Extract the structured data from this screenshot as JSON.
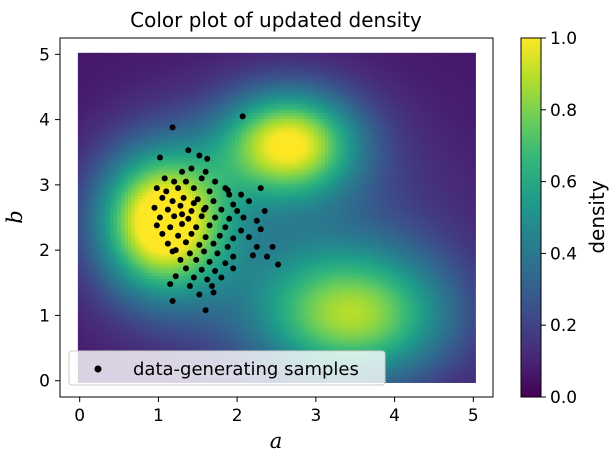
{
  "chart_data": {
    "type": "scatter",
    "title": "Color plot of updated density",
    "xlabel": "a",
    "ylabel": "b",
    "xlim": [
      -0.25,
      5.25
    ],
    "ylim": [
      -0.25,
      5.25
    ],
    "xticks": [
      0,
      1,
      2,
      3,
      4,
      5
    ],
    "yticks": [
      0,
      1,
      2,
      3,
      4,
      5
    ],
    "colorbar": {
      "label": "density",
      "range": [
        0.0,
        1.0
      ],
      "ticks": [
        "0.0",
        "0.2",
        "0.4",
        "0.6",
        "0.8",
        "1.0"
      ],
      "colormap": [
        "#440154",
        "#482878",
        "#3e4989",
        "#31688e",
        "#26828e",
        "#1f9e89",
        "#35b779",
        "#6ece58",
        "#b5de2b",
        "#fde725"
      ]
    },
    "density_peaks": [
      {
        "a": 1.05,
        "b": 2.45,
        "value": 1.0
      },
      {
        "a": 2.65,
        "b": 3.65,
        "value": 0.85
      },
      {
        "a": 3.5,
        "b": 1.0,
        "value": 0.7
      }
    ],
    "density_domain": {
      "a": [
        0,
        5
      ],
      "b": [
        0,
        5
      ]
    },
    "series": [
      {
        "name": "data-generating samples",
        "color": "#000000",
        "points": [
          [
            1.18,
            3.88
          ],
          [
            2.07,
            4.05
          ],
          [
            1.02,
            3.42
          ],
          [
            1.52,
            3.45
          ],
          [
            1.62,
            3.4
          ],
          [
            1.38,
            3.53
          ],
          [
            1.42,
            3.25
          ],
          [
            1.6,
            3.2
          ],
          [
            1.3,
            3.2
          ],
          [
            1.08,
            3.1
          ],
          [
            1.2,
            3.05
          ],
          [
            1.35,
            3.05
          ],
          [
            1.55,
            3.1
          ],
          [
            1.72,
            3.05
          ],
          [
            1.85,
            2.95
          ],
          [
            0.98,
            2.95
          ],
          [
            1.1,
            2.9
          ],
          [
            1.25,
            2.95
          ],
          [
            1.45,
            2.95
          ],
          [
            1.65,
            2.9
          ],
          [
            1.9,
            2.85
          ],
          [
            2.05,
            2.85
          ],
          [
            2.3,
            2.95
          ],
          [
            1.05,
            2.8
          ],
          [
            1.18,
            2.75
          ],
          [
            1.32,
            2.8
          ],
          [
            1.5,
            2.78
          ],
          [
            1.7,
            2.75
          ],
          [
            1.95,
            2.7
          ],
          [
            2.15,
            2.75
          ],
          [
            0.95,
            2.65
          ],
          [
            1.12,
            2.62
          ],
          [
            1.28,
            2.68
          ],
          [
            1.42,
            2.6
          ],
          [
            1.6,
            2.65
          ],
          [
            1.8,
            2.62
          ],
          [
            2.0,
            2.6
          ],
          [
            2.35,
            2.6
          ],
          [
            1.02,
            2.5
          ],
          [
            1.2,
            2.52
          ],
          [
            1.38,
            2.48
          ],
          [
            1.55,
            2.52
          ],
          [
            1.72,
            2.5
          ],
          [
            1.9,
            2.48
          ],
          [
            2.08,
            2.5
          ],
          [
            2.25,
            2.45
          ],
          [
            0.98,
            2.38
          ],
          [
            1.15,
            2.35
          ],
          [
            1.3,
            2.4
          ],
          [
            1.48,
            2.35
          ],
          [
            1.65,
            2.38
          ],
          [
            1.85,
            2.35
          ],
          [
            2.05,
            2.3
          ],
          [
            2.3,
            2.32
          ],
          [
            1.05,
            2.25
          ],
          [
            1.25,
            2.22
          ],
          [
            1.42,
            2.25
          ],
          [
            1.6,
            2.2
          ],
          [
            1.78,
            2.22
          ],
          [
            1.95,
            2.18
          ],
          [
            2.15,
            2.2
          ],
          [
            1.12,
            2.1
          ],
          [
            1.35,
            2.12
          ],
          [
            1.52,
            2.08
          ],
          [
            1.7,
            2.1
          ],
          [
            1.88,
            2.05
          ],
          [
            2.25,
            2.05
          ],
          [
            2.45,
            2.05
          ],
          [
            1.18,
            1.98
          ],
          [
            1.4,
            1.95
          ],
          [
            1.58,
            1.98
          ],
          [
            1.75,
            1.95
          ],
          [
            1.95,
            1.9
          ],
          [
            2.2,
            1.92
          ],
          [
            1.28,
            1.85
          ],
          [
            1.48,
            1.85
          ],
          [
            1.65,
            1.82
          ],
          [
            1.85,
            1.8
          ],
          [
            2.38,
            1.9
          ],
          [
            1.35,
            1.72
          ],
          [
            1.55,
            1.7
          ],
          [
            1.72,
            1.68
          ],
          [
            1.95,
            1.72
          ],
          [
            2.52,
            1.78
          ],
          [
            1.22,
            1.6
          ],
          [
            1.45,
            1.58
          ],
          [
            1.62,
            1.55
          ],
          [
            1.8,
            1.58
          ],
          [
            1.15,
            1.48
          ],
          [
            1.4,
            1.45
          ],
          [
            1.68,
            1.45
          ],
          [
            1.52,
            1.32
          ],
          [
            1.7,
            1.35
          ],
          [
            1.18,
            1.22
          ],
          [
            1.6,
            1.08
          ],
          [
            1.22,
            2.0
          ],
          [
            1.58,
            2.62
          ],
          [
            1.88,
            2.92
          ],
          [
            1.3,
            2.55
          ],
          [
            1.45,
            2.72
          ]
        ]
      }
    ],
    "legend": {
      "label": "data-generating samples",
      "placement": "lower-left"
    }
  }
}
